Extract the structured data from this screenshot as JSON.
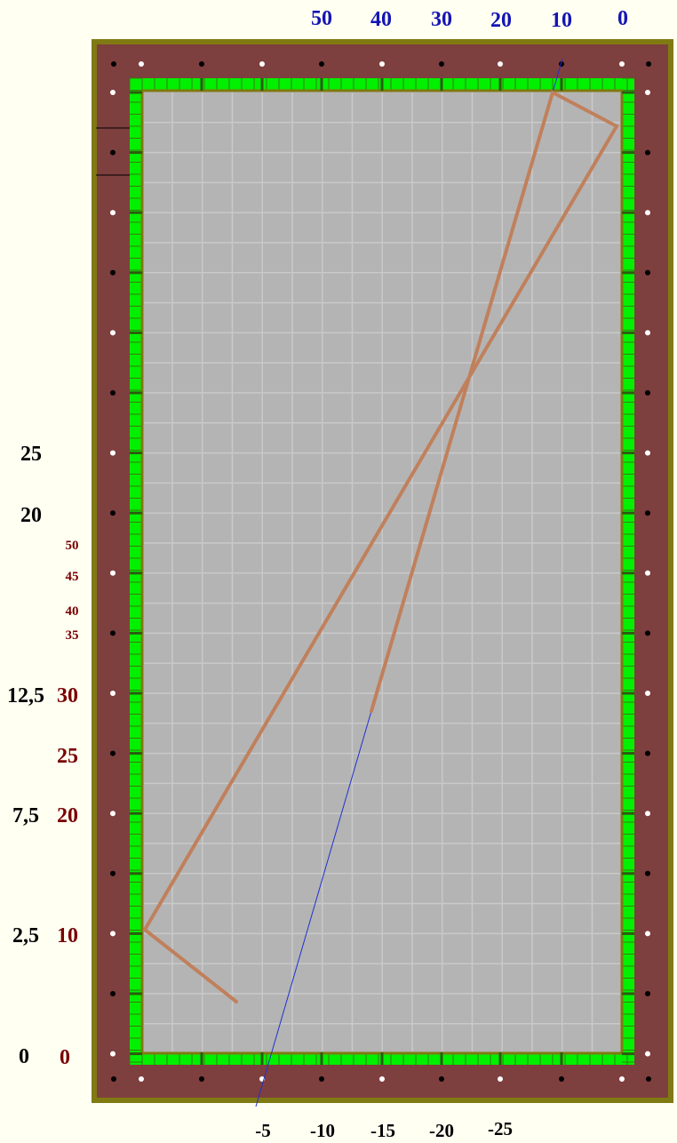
{
  "colors": {
    "background": "#fffff2",
    "frame": "#7f7a12",
    "rail": "#7e3f3f",
    "cushion": "#00f000",
    "felt": "#b4b4b4",
    "grid": "#c9c9c9",
    "path": "#c0805c",
    "guide": "#2030d0",
    "top_labels": "#1414b4",
    "left_black_labels": "#000000",
    "left_red_labels": "#780000"
  },
  "top_scale": [
    "50",
    "40",
    "30",
    "20",
    "10",
    "0"
  ],
  "bottom_scale": [
    "-5",
    "-10",
    "-15",
    "-20",
    "-25"
  ],
  "left_black_scale": [
    "25",
    "20",
    "12,5",
    "7,5",
    "2,5",
    "0"
  ],
  "left_red_scale": [
    "50",
    "45",
    "40",
    "35",
    "30",
    "25",
    "20",
    "10",
    "0"
  ]
}
